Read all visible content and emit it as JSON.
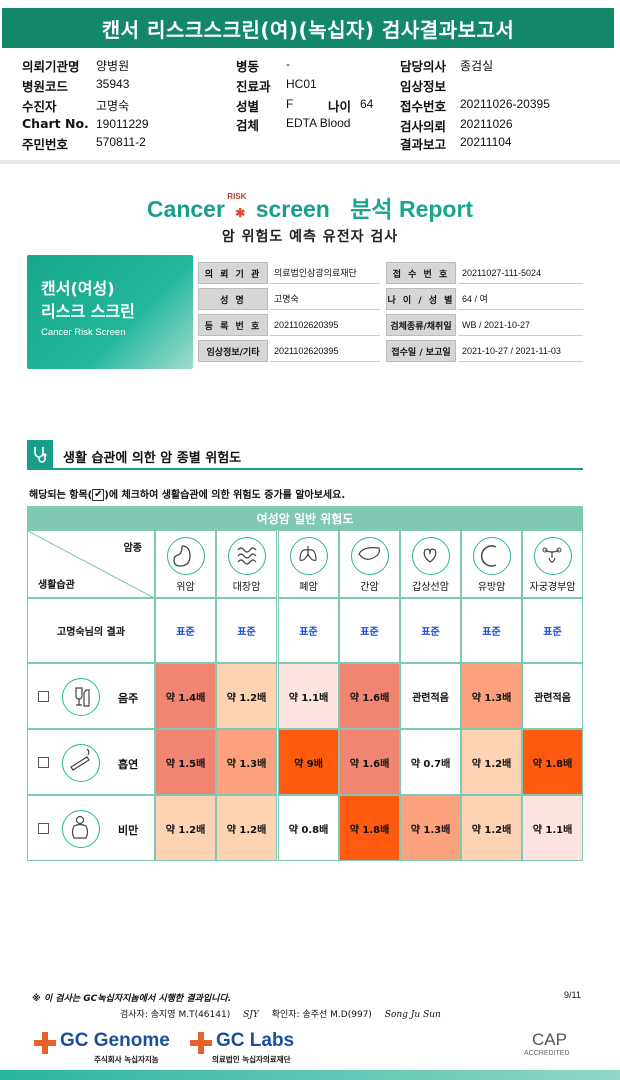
{
  "title": "캔서 리스크스크린(여)(녹십자) 검사결과보고서",
  "header": {
    "col1": [
      {
        "label": "의뢰기관명",
        "value": "양병원"
      },
      {
        "label": "병원코드",
        "value": "35943"
      },
      {
        "label": "수진자",
        "value": "고명숙"
      },
      {
        "label": "Chart No.",
        "value": "19011229"
      },
      {
        "label": "주민번호",
        "value": "570811-2"
      }
    ],
    "col2": [
      {
        "label": "병동",
        "value": "-"
      },
      {
        "label": "진료과",
        "value": "HC01"
      },
      {
        "label": "성별",
        "value": "F"
      },
      {
        "label": "검체",
        "value": "EDTA Blood"
      }
    ],
    "age": {
      "label": "나이",
      "value": "64"
    },
    "col3": [
      {
        "label": "담당의사",
        "value": "종검실"
      },
      {
        "label": "임상정보",
        "value": ""
      },
      {
        "label": "접수번호",
        "value": "20211026-20395"
      },
      {
        "label": "검사의뢰",
        "value": "20211026"
      },
      {
        "label": "결과보고",
        "value": "20211104"
      }
    ]
  },
  "report": {
    "logo_cancer": "Cancer",
    "logo_risk": "RISK",
    "logo_screen": "screen",
    "logo_kor": "분석 Report",
    "subtitle": "암 위험도 예측 유전자 검사"
  },
  "brand_card": {
    "line1": "캔서(여성)",
    "line2": "리스크 스크린",
    "line3": "Cancer Risk Screen"
  },
  "info": [
    {
      "l1": "의 뢰 기 관",
      "v1": "의료법인삼광의료재단",
      "l2": "접 수 번 호",
      "v2": "20211027-111-5024"
    },
    {
      "l1": "성 명",
      "v1": "고명숙",
      "l2": "나 이 / 성 별",
      "v2": "64 / 여"
    },
    {
      "l1": "등 록 번 호",
      "v1": "2021102620395",
      "l2": "검체종류/채취일",
      "v2": "WB / 2021-10-27"
    },
    {
      "l1": "임상정보/기타",
      "v1": "2021102620395",
      "l2": "접수일 / 보고일",
      "v2": "2021-10-27 / 2021-11-03"
    }
  ],
  "section": {
    "title": "생활 습관에 의한 암 종별 위험도",
    "instruction_pre": "해당되는 항목(",
    "instruction_check": "✔",
    "instruction_post": ")에 체크하여 생활습관에 의한 위험도 증가를 알아보세요."
  },
  "table": {
    "header": "여성암 일반 위험도",
    "corner_top": "암종",
    "corner_bottom": "생활습관",
    "cancers": [
      "위암",
      "대장암",
      "폐암",
      "간암",
      "갑상선암",
      "유방암",
      "자궁경부암"
    ],
    "result_label": "고명숙님의 결과",
    "results": [
      "표준",
      "표준",
      "표준",
      "표준",
      "표준",
      "표준",
      "표준"
    ],
    "habits": [
      {
        "name": "음주",
        "icon": "alcohol-icon",
        "values": [
          "약 1.4배",
          "약 1.2배",
          "약 1.1배",
          "약 1.6배",
          "관련적음",
          "약 1.3배",
          "관련적음"
        ],
        "colors": [
          "#f28472",
          "#fdd3b4",
          "#fde3dd",
          "#f28472",
          "#ffffff",
          "#fca17d",
          "#ffffff"
        ]
      },
      {
        "name": "흡연",
        "icon": "smoking-icon",
        "values": [
          "약 1.5배",
          "약 1.3배",
          "약 9배",
          "약 1.6배",
          "약 0.7배",
          "약 1.2배",
          "약 1.8배"
        ],
        "colors": [
          "#f28472",
          "#fca17d",
          "#ff5a0f",
          "#f28472",
          "#ffffff",
          "#fdd3b4",
          "#ff5a0f"
        ]
      },
      {
        "name": "비만",
        "icon": "obesity-icon",
        "values": [
          "약 1.2배",
          "약 1.2배",
          "약 0.8배",
          "약 1.8배",
          "약 1.3배",
          "약 1.2배",
          "약 1.1배"
        ],
        "colors": [
          "#fdd3b4",
          "#fdd3b4",
          "#ffffff",
          "#ff5a0f",
          "#fca17d",
          "#fdd3b4",
          "#fde3dd"
        ]
      }
    ]
  },
  "footer": {
    "note": "※ 이 검사는 GC녹십자지놈에서 시행한 결과입니다.",
    "page": "9/11",
    "tester_label": "검사자:",
    "tester": "송지영 M.T(46141)",
    "tester_sig": "SJY",
    "confirm_label": "확인자:",
    "confirmer": "송주선 M.D(997)",
    "confirmer_sig": "Song Ju Sun",
    "logo1": "GC Genome",
    "logo1_sub": "주식회사 녹십자지놈",
    "logo2": "GC Labs",
    "logo2_sub": "의료법인 녹십자의료재단",
    "cap": "CAP",
    "cap_sub": "ACCREDITED"
  }
}
